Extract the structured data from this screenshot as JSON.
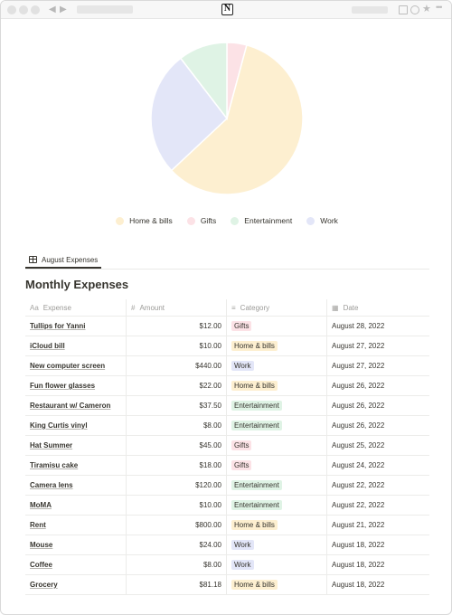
{
  "colors": {
    "home_bills": "#fdefd0",
    "gifts": "#fce2e6",
    "entertainment": "#dff3e5",
    "work": "#e3e6f8"
  },
  "chrome": {
    "logo_letter": "N",
    "icons": [
      "back-arrow-icon",
      "forward-arrow-icon",
      "notion-logo-icon",
      "window-icon",
      "profile-icon",
      "star-icon",
      "more-icon"
    ]
  },
  "chart_data": {
    "type": "pie",
    "title": "",
    "categories": [
      "Home & bills",
      "Gifts",
      "Entertainment",
      "Work"
    ],
    "values": [
      1049.18,
      75.0,
      186.0,
      474.0
    ],
    "colors": [
      "#fdefd0",
      "#fce2e6",
      "#dff3e5",
      "#e3e6f8"
    ],
    "legend": "bottom"
  },
  "view_tab": {
    "label": "August Expenses",
    "icon": "table-icon"
  },
  "database": {
    "title": "Monthly Expenses"
  },
  "columns": [
    {
      "label": "Expense",
      "icon": "Aa"
    },
    {
      "label": "Amount",
      "icon": "#"
    },
    {
      "label": "Category",
      "icon": "≡"
    },
    {
      "label": "Date",
      "icon": "▦"
    }
  ],
  "rows": [
    {
      "expense": "Tullips for Yanni",
      "amount": "$12.00",
      "category": "Gifts",
      "date": "August 28, 2022"
    },
    {
      "expense": "iCloud bill",
      "amount": "$10.00",
      "category": "Home & bills",
      "date": "August 27, 2022"
    },
    {
      "expense": "New computer screen",
      "amount": "$440.00",
      "category": "Work",
      "date": "August 27, 2022"
    },
    {
      "expense": "Fun flower glasses",
      "amount": "$22.00",
      "category": "Home & bills",
      "date": "August 26, 2022"
    },
    {
      "expense": "Restaurant w/ Cameron",
      "amount": "$37.50",
      "category": "Entertainment",
      "date": "August 26, 2022"
    },
    {
      "expense": "King Curtis vinyl",
      "amount": "$8.00",
      "category": "Entertainment",
      "date": "August 26, 2022"
    },
    {
      "expense": "Hat Summer",
      "amount": "$45.00",
      "category": "Gifts",
      "date": "August 25, 2022"
    },
    {
      "expense": "Tiramisu cake",
      "amount": "$18.00",
      "category": "Gifts",
      "date": "August 24, 2022"
    },
    {
      "expense": "Camera lens",
      "amount": "$120.00",
      "category": "Entertainment",
      "date": "August 22, 2022"
    },
    {
      "expense": "MoMA",
      "amount": "$10.00",
      "category": "Entertainment",
      "date": "August 22, 2022"
    },
    {
      "expense": "Rent",
      "amount": "$800.00",
      "category": "Home & bills",
      "date": "August 21, 2022"
    },
    {
      "expense": "Mouse",
      "amount": "$24.00",
      "category": "Work",
      "date": "August 18, 2022"
    },
    {
      "expense": "Coffee",
      "amount": "$8.00",
      "category": "Work",
      "date": "August 18, 2022"
    },
    {
      "expense": "Grocery",
      "amount": "$81.18",
      "category": "Home & bills",
      "date": "August 18, 2022"
    }
  ]
}
